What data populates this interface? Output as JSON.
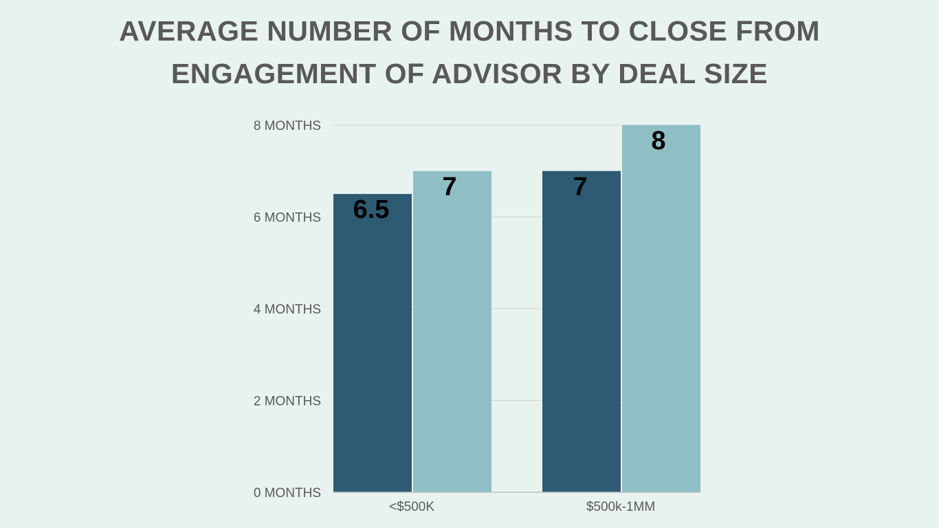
{
  "chart_data": {
    "type": "bar",
    "title_lines": [
      "AVERAGE NUMBER OF MONTHS TO CLOSE FROM",
      "ENGAGEMENT OF ADVISOR BY DEAL SIZE"
    ],
    "categories": [
      "<$500K",
      "$500k-1MM"
    ],
    "series": [
      {
        "values": [
          6.5,
          7
        ],
        "color": "#2e5b73"
      },
      {
        "values": [
          7,
          8
        ],
        "color": "#90bec5"
      }
    ],
    "data_labels": [
      [
        "6.5",
        "7"
      ],
      [
        "7",
        "8"
      ]
    ],
    "yticks": [
      {
        "value": 0,
        "label": "0 MONTHS"
      },
      {
        "value": 2,
        "label": "2 MONTHS"
      },
      {
        "value": 4,
        "label": "4 MONTHS"
      },
      {
        "value": 6,
        "label": "6 MONTHS"
      },
      {
        "value": 8,
        "label": "8 MONTHS"
      }
    ],
    "ylim": [
      0,
      8
    ],
    "grid": true,
    "legend": "none",
    "colors": {
      "background": "#e8f3f0",
      "gridline": "#c9d9d6",
      "axis": "#bfbfbf",
      "text": "#595959",
      "label": "#000000"
    }
  }
}
